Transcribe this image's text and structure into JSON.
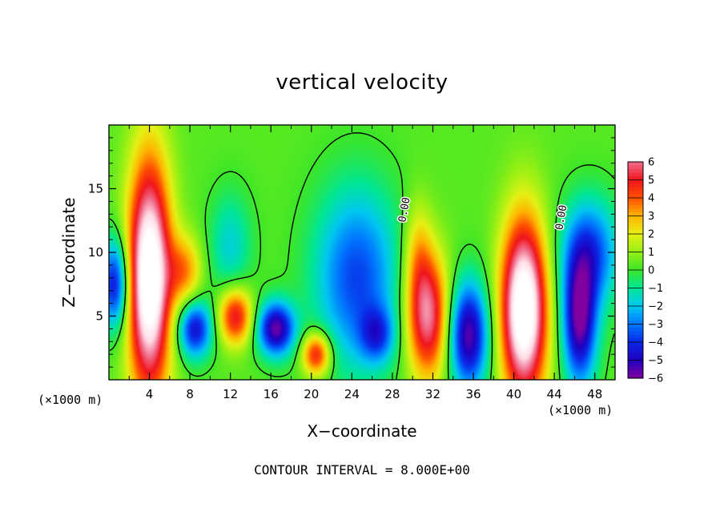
{
  "chart_data": {
    "type": "heatmap",
    "title": "vertical velocity",
    "xlabel": "X−coordinate",
    "ylabel": "Z−coordinate",
    "x_unit_left": "(×1000 m)",
    "x_unit_right": "(×1000 m)",
    "xlim": [
      0,
      50
    ],
    "ylim": [
      0,
      20
    ],
    "x_ticks": [
      4,
      8,
      12,
      16,
      20,
      24,
      28,
      32,
      36,
      40,
      44,
      48
    ],
    "y_ticks": [
      5,
      10,
      15
    ],
    "colorbar": {
      "ticks": [
        6,
        5,
        4,
        3,
        2,
        1,
        0,
        -1,
        -2,
        -3,
        -4,
        -5,
        -6
      ],
      "labels": [
        "6",
        "5",
        "4",
        "3",
        "2",
        "1",
        "0",
        "−1",
        "−2",
        "−3",
        "−4",
        "−5",
        "−6"
      ],
      "range": [
        -6,
        6
      ]
    },
    "contour_labels": [
      {
        "text": "0.00",
        "x": 29.5,
        "z": 13.3
      },
      {
        "text": "0.00",
        "x": 45.0,
        "z": 12.7
      }
    ],
    "note": "CONTOUR INTERVAL = 8.000E+00",
    "features": [
      {
        "kind": "updraft",
        "x": 4.0,
        "z": 8.0,
        "sx": 1.5,
        "sz": 6.5,
        "value": 9
      },
      {
        "kind": "updraft",
        "x": 7.5,
        "z": 8.5,
        "sx": 1.2,
        "sz": 2.0,
        "value": 3
      },
      {
        "kind": "downdraft",
        "x": 0.6,
        "z": 7.5,
        "sx": 1.0,
        "sz": 2.5,
        "value": -5
      },
      {
        "kind": "downdraft",
        "x": 8.5,
        "z": 4.0,
        "sx": 1.2,
        "sz": 1.6,
        "value": -5
      },
      {
        "kind": "updraft",
        "x": 12.5,
        "z": 5.0,
        "sx": 1.2,
        "sz": 1.6,
        "value": 5
      },
      {
        "kind": "downdraft",
        "x": 16.5,
        "z": 4.0,
        "sx": 1.3,
        "sz": 1.5,
        "value": -6
      },
      {
        "kind": "updraft",
        "x": 20.5,
        "z": 2.0,
        "sx": 1.0,
        "sz": 1.2,
        "value": 5
      },
      {
        "kind": "downdraft",
        "x": 24.5,
        "z": 8.0,
        "sx": 3.0,
        "sz": 5.0,
        "value": -4
      },
      {
        "kind": "downdraft",
        "x": 12.0,
        "z": 10.5,
        "sx": 1.5,
        "sz": 3.0,
        "value": -2
      },
      {
        "kind": "updraft",
        "x": 31.5,
        "z": 5.0,
        "sx": 1.5,
        "sz": 3.5,
        "value": 6
      },
      {
        "kind": "downdraft",
        "x": 35.5,
        "z": 3.5,
        "sx": 1.4,
        "sz": 3.0,
        "value": -6
      },
      {
        "kind": "updraft",
        "x": 41.0,
        "z": 5.5,
        "sx": 1.6,
        "sz": 5.0,
        "value": 9
      },
      {
        "kind": "downdraft",
        "x": 46.5,
        "z": 4.5,
        "sx": 1.2,
        "sz": 3.5,
        "value": -6
      },
      {
        "kind": "downdraft",
        "x": 47.5,
        "z": 10.0,
        "sx": 2.0,
        "sz": 3.0,
        "value": -4
      },
      {
        "kind": "updraft",
        "x": 30.5,
        "z": 10.0,
        "sx": 1.0,
        "sz": 3.0,
        "value": 2
      },
      {
        "kind": "downdraft",
        "x": 26.5,
        "z": 3.5,
        "sx": 1.2,
        "sz": 1.5,
        "value": -3
      }
    ]
  }
}
